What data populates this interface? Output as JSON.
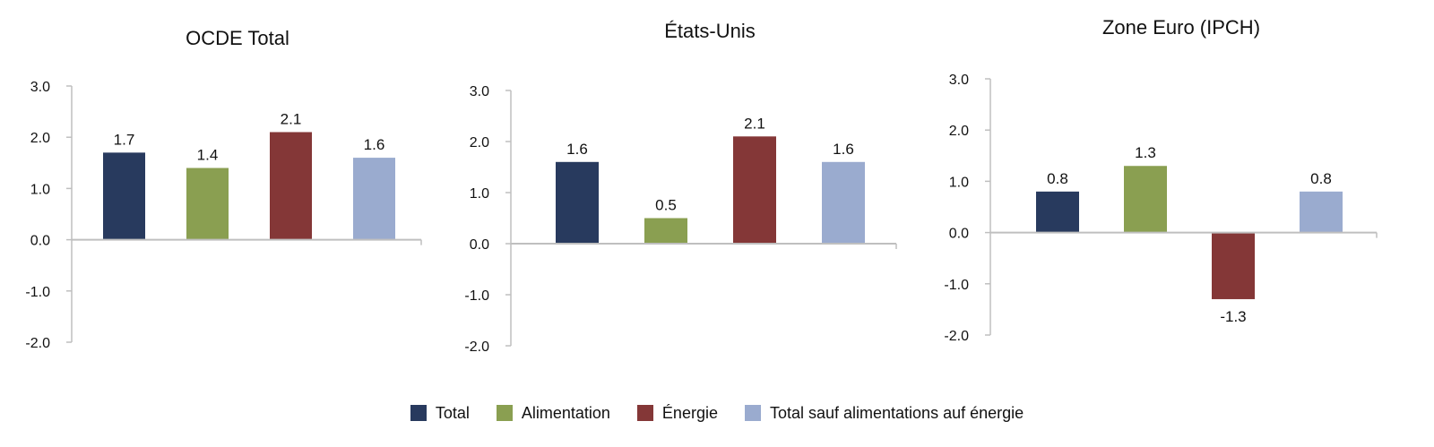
{
  "colors": {
    "total": "#283a5e",
    "alimentation": "#8a9f51",
    "energie": "#843737",
    "sauf": "#9aabcf",
    "axis": "#bfbfbf"
  },
  "legend": [
    {
      "label": "Total",
      "color": "#283a5e"
    },
    {
      "label": "Alimentation",
      "color": "#8a9f51"
    },
    {
      "label": "Énergie",
      "color": "#843737"
    },
    {
      "label": "Total sauf alimentations auf énergie",
      "color": "#9aabcf"
    }
  ],
  "chart_data": [
    {
      "type": "bar",
      "title": "OCDE Total",
      "categories": [
        "Total",
        "Alimentation",
        "Énergie",
        "Total sauf alimentations auf énergie"
      ],
      "values": [
        1.7,
        1.4,
        2.1,
        1.6
      ],
      "ylim": [
        -2.0,
        3.0
      ],
      "yticks": [
        "3.0",
        "2.0",
        "1.0",
        "0.0",
        "-1.0",
        "-2.0"
      ],
      "data_labels": [
        "1.7",
        "1.4",
        "2.1",
        "1.6"
      ],
      "grid": false
    },
    {
      "type": "bar",
      "title": "États-Unis",
      "categories": [
        "Total",
        "Alimentation",
        "Énergie",
        "Total sauf alimentations auf énergie"
      ],
      "values": [
        1.6,
        0.5,
        2.1,
        1.6
      ],
      "ylim": [
        -2.0,
        3.0
      ],
      "yticks": [
        "3.0",
        "2.0",
        "1.0",
        "0.0",
        "-1.0",
        "-2.0"
      ],
      "data_labels": [
        "1.6",
        "0.5",
        "2.1",
        "1.6"
      ],
      "grid": false
    },
    {
      "type": "bar",
      "title": "Zone Euro (IPCH)",
      "categories": [
        "Total",
        "Alimentation",
        "Énergie",
        "Total sauf alimentations auf énergie"
      ],
      "values": [
        0.8,
        1.3,
        -1.3,
        0.8
      ],
      "ylim": [
        -2.0,
        3.0
      ],
      "yticks": [
        "3.0",
        "2.0",
        "1.0",
        "0.0",
        "-1.0",
        "-2.0"
      ],
      "data_labels": [
        "0.8",
        "1.3",
        "-1.3",
        "0.8"
      ],
      "grid": false
    }
  ]
}
